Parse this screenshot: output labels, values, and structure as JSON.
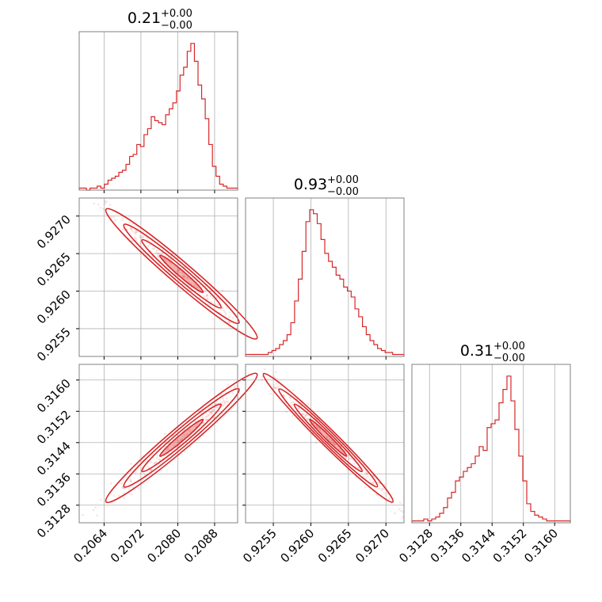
{
  "chart_data": {
    "type": "corner",
    "color": "#d62728",
    "parameters": [
      {
        "title_value": "0.21",
        "title_plus": "+0.00",
        "title_minus": "−0.00",
        "range": [
          0.20586,
          0.2093
        ],
        "ticks": [
          0.2064,
          0.2072,
          0.208,
          0.2088
        ],
        "tick_labels": [
          "0.2064",
          "0.2072",
          "0.2080",
          "0.2088"
        ],
        "hist": {
          "edges": [
            0.20586,
            0.2093
          ],
          "counts": [
            1,
            1,
            0,
            1,
            1,
            2,
            1,
            3,
            5,
            6,
            7,
            9,
            10,
            13,
            17,
            18,
            23,
            22,
            28,
            31,
            37,
            35,
            34,
            33,
            38,
            41,
            44,
            50,
            58,
            62,
            70,
            74,
            65,
            53,
            46,
            36,
            23,
            12,
            7,
            3,
            2,
            1,
            1,
            1
          ]
        }
      },
      {
        "title_value": "0.93",
        "title_plus": "+0.00",
        "title_minus": "−0.00",
        "range": [
          0.92513,
          0.92724
        ],
        "ticks": [
          0.9255,
          0.926,
          0.9265,
          0.927
        ],
        "tick_labels": [
          "0.9255",
          "0.9260",
          "0.9265",
          "0.9270"
        ],
        "hist": {
          "edges": [
            0.92513,
            0.92724
          ],
          "counts": [
            1,
            1,
            1,
            1,
            1,
            1,
            2,
            3,
            4,
            6,
            8,
            11,
            17,
            28,
            39,
            53,
            68,
            74,
            72,
            67,
            59,
            52,
            48,
            45,
            41,
            39,
            35,
            33,
            30,
            24,
            20,
            15,
            11,
            8,
            6,
            4,
            3,
            2,
            2,
            1,
            1,
            1
          ]
        }
      },
      {
        "title_value": "0.31",
        "title_plus": "+0.00",
        "title_minus": "−0.00",
        "range": [
          0.31235,
          0.3164
        ],
        "ticks": [
          0.3128,
          0.3136,
          0.3144,
          0.3152,
          0.316
        ],
        "tick_labels": [
          "0.3128",
          "0.3136",
          "0.3144",
          "0.3152",
          "0.3160"
        ],
        "hist": {
          "edges": [
            0.31235,
            0.3164
          ],
          "counts": [
            1,
            1,
            1,
            2,
            1,
            2,
            3,
            5,
            8,
            13,
            16,
            22,
            24,
            27,
            29,
            31,
            35,
            40,
            38,
            50,
            52,
            54,
            63,
            70,
            77,
            64,
            49,
            35,
            22,
            10,
            6,
            4,
            3,
            2,
            1,
            1,
            1,
            1,
            1,
            1
          ]
        }
      }
    ],
    "pairs": [
      {
        "x_param": 0,
        "y_param": 1,
        "slope": -1,
        "mean": [
          0.20808,
          0.92623
        ],
        "spread": [
          0.00078,
          0.00041
        ],
        "corr": -0.985
      },
      {
        "x_param": 0,
        "y_param": 2,
        "slope": 1,
        "mean": [
          0.20808,
          0.31452
        ],
        "spread": [
          0.00078,
          0.00078
        ],
        "corr": 0.985
      },
      {
        "x_param": 1,
        "y_param": 2,
        "slope": -1,
        "mean": [
          0.92623,
          0.31452
        ],
        "spread": [
          0.00041,
          0.00078
        ],
        "corr": -0.99
      }
    ],
    "grid": true
  }
}
